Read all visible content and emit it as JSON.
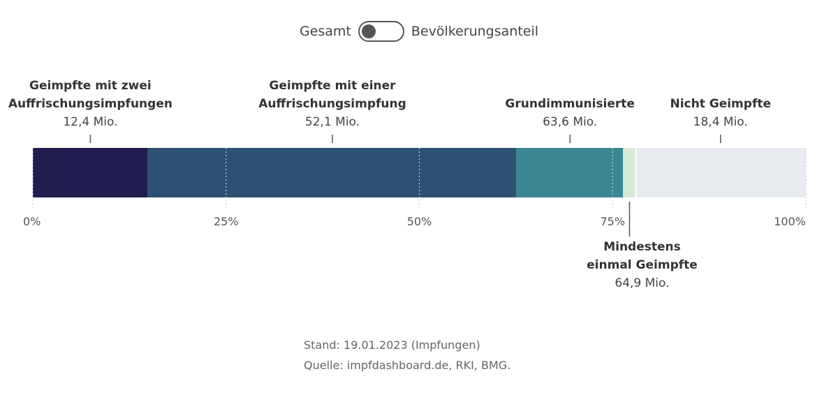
{
  "toggle": {
    "left_label": "Gesamt",
    "right_label": "Bevölkerungsanteil",
    "state": "Gesamt"
  },
  "chart_data": {
    "type": "bar",
    "orientation": "horizontal-stacked-100",
    "unit": "Mio.",
    "total": 83.3,
    "segments": [
      {
        "name": "Geimpfte mit zwei Auffrischungsimpfungen",
        "value": 12.4,
        "color": "#211d4e"
      },
      {
        "name": "Geimpfte mit einer Auffrischungsimpfung (zusätzlich)",
        "value": 39.7,
        "color": "#2c5170"
      },
      {
        "name": "Grundimmunisierte (zusätzlich)",
        "value": 11.5,
        "color": "#3a8793"
      },
      {
        "name": "Mindestens einmal Geimpfte (zusätzlich)",
        "value": 1.3,
        "color": "#d6ead5"
      },
      {
        "name": "Nicht Geimpfte",
        "value": 18.4,
        "color": "#e8ebef"
      }
    ],
    "labels": [
      {
        "title": "Geimpfte mit zwei Auffrischungsimpfungen",
        "line1": "Geimpfte mit zwei",
        "line2": "Auffrischungsimpfungen",
        "value_text": "12,4 Mio.",
        "segment": 0
      },
      {
        "title": "Geimpfte mit einer Auffrischungsimpfung",
        "line1": "Geimpfte mit einer",
        "line2": "Auffrischungsimpfung",
        "value_text": "52,1 Mio.",
        "segment": 1
      },
      {
        "title": "Grundimmunisierte",
        "line1": "Grundimmunisierte",
        "line2": "",
        "value_text": "63,6 Mio.",
        "segment": 2
      },
      {
        "title": "Nicht Geimpfte",
        "line1": "Nicht Geimpfte",
        "line2": "",
        "value_text": "18,4 Mio.",
        "segment": 4
      },
      {
        "title": "Mindestens einmal Geimpfte",
        "line1": "Mindestens",
        "line2": "einmal Geimpfte",
        "value_text": "64,9 Mio.",
        "segment": 3
      }
    ],
    "x_ticks": [
      0,
      25,
      50,
      75,
      100
    ],
    "x_tick_labels": [
      "0%",
      "25%",
      "50%",
      "75%",
      "100%"
    ],
    "xlim": [
      0,
      100
    ]
  },
  "footer": {
    "stand": "Stand: 19.01.2023 (Impfungen)",
    "quelle": "Quelle: impfdashboard.de, RKI, BMG."
  }
}
